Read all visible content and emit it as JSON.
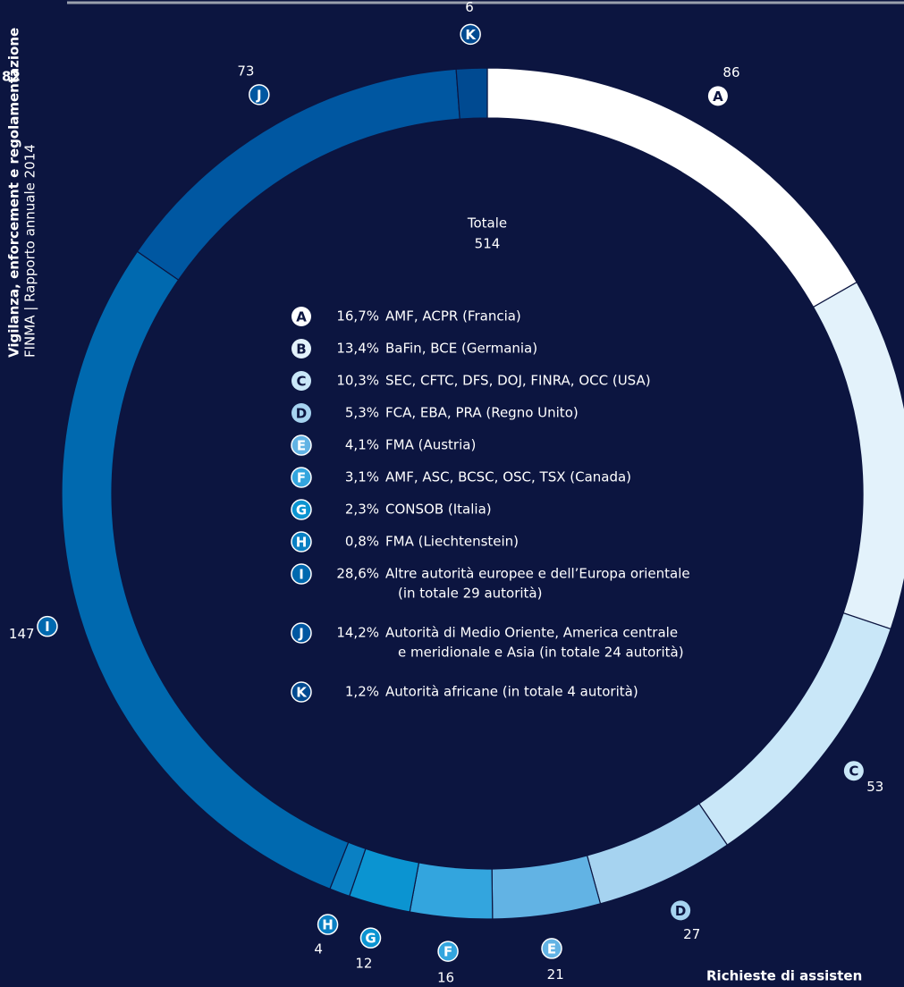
{
  "page_number": "82",
  "side_title": "Vigilanza, enforcement e regolamentazione",
  "side_subtitle": "FINMA | Rapporto annuale 2014",
  "chart_data": {
    "type": "donut",
    "title": "Richieste di assisten",
    "center_label": "Totale",
    "total": 514,
    "categories": [
      "A",
      "B",
      "C",
      "D",
      "E",
      "F",
      "G",
      "H",
      "I",
      "J",
      "K"
    ],
    "values": [
      86,
      69,
      53,
      27,
      21,
      16,
      12,
      4,
      147,
      73,
      6
    ],
    "colors": [
      "#ffffff",
      "#e3f2fb",
      "#c9e7f8",
      "#a6d3f0",
      "#62b3e4",
      "#33a5de",
      "#0b94d1",
      "#0a80c3",
      "#0069af",
      "#0057a1",
      "#004a91"
    ],
    "legend": [
      {
        "percent": "16,7%",
        "lines": [
          "AMF, ACPR (Francia)"
        ]
      },
      {
        "percent": "13,4%",
        "lines": [
          "BaFin, BCE (Germania)"
        ]
      },
      {
        "percent": "10,3%",
        "lines": [
          "SEC, CFTC, DFS, DOJ, FINRA, OCC (USA)"
        ]
      },
      {
        "percent": "5,3%",
        "lines": [
          "FCA, EBA, PRA (Regno Unito)"
        ]
      },
      {
        "percent": "4,1%",
        "lines": [
          "FMA (Austria)"
        ]
      },
      {
        "percent": "3,1%",
        "lines": [
          "AMF, ASC, BCSC, OSC, TSX (Canada)"
        ]
      },
      {
        "percent": "2,3%",
        "lines": [
          "CONSOB (Italia)"
        ]
      },
      {
        "percent": "0,8%",
        "lines": [
          "FMA (Liechtenstein)"
        ]
      },
      {
        "percent": "28,6%",
        "lines": [
          "Altre autorità europee e dell’Europa orientale",
          "(in totale 29 autorità)"
        ]
      },
      {
        "percent": "14,2%",
        "lines": [
          "Autorità di Medio Oriente, America centrale",
          "e meridionale e Asia (in totale 24 autorità)"
        ]
      },
      {
        "percent": "1,2%",
        "lines": [
          "Autorità africane (in totale 4 autorità)"
        ]
      }
    ]
  }
}
